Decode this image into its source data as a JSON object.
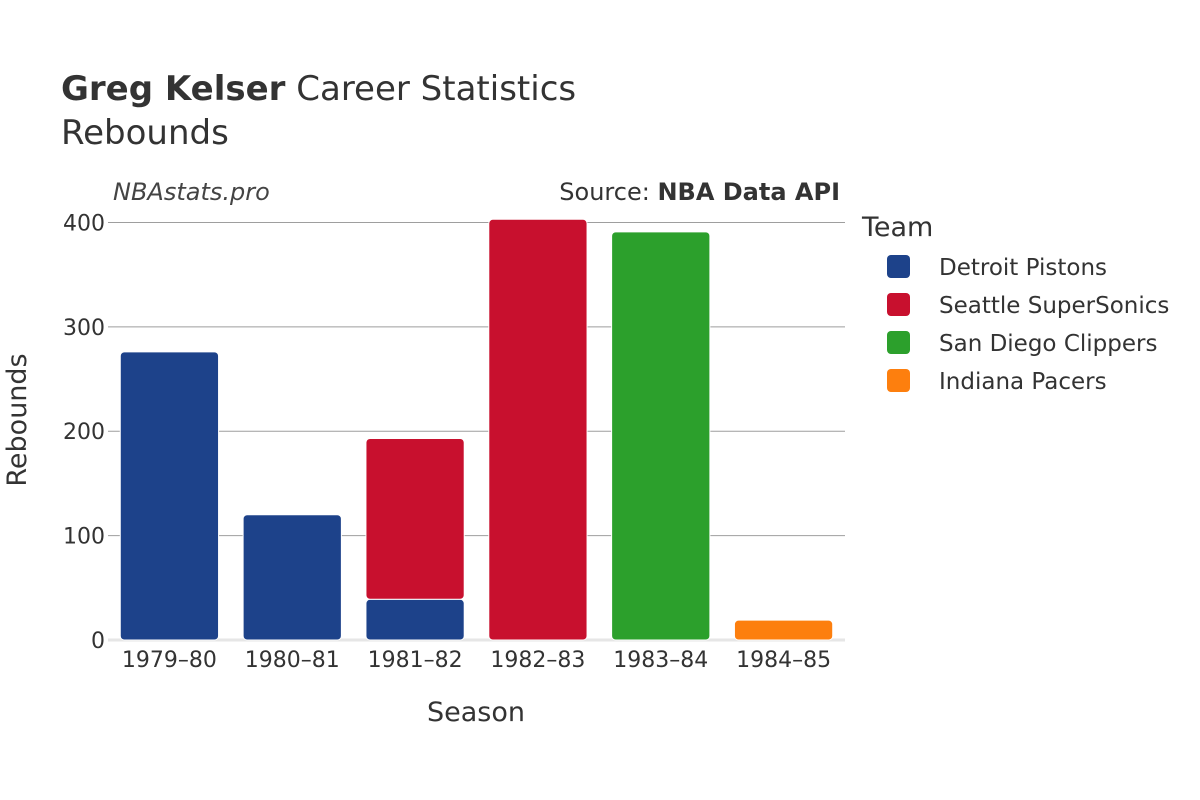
{
  "header": {
    "player_name": "Greg Kelser",
    "title_rest": "Career Statistics",
    "subtitle": "Rebounds"
  },
  "watermark": "NBAstats.pro",
  "source": {
    "prefix": "Source: ",
    "name": "NBA Data API"
  },
  "chart_data": {
    "type": "bar",
    "stacked": true,
    "xlabel": "Season",
    "ylabel": "Rebounds",
    "ylim": [
      0,
      410
    ],
    "yticks": [
      0,
      100,
      200,
      300,
      400
    ],
    "grid": true,
    "legend_title": "Team",
    "legend_position": "right",
    "categories": [
      "1979–80",
      "1980–81",
      "1981–82",
      "1982–83",
      "1983–84",
      "1984–85"
    ],
    "series": [
      {
        "name": "Detroit Pistons",
        "color": "#1d428a",
        "values": [
          276,
          120,
          39,
          0,
          0,
          0
        ]
      },
      {
        "name": "Seattle SuperSonics",
        "color": "#c8102e",
        "values": [
          0,
          0,
          154,
          403,
          0,
          0
        ]
      },
      {
        "name": "San Diego Clippers",
        "color": "#2ca02c",
        "values": [
          0,
          0,
          0,
          0,
          391,
          0
        ]
      },
      {
        "name": "Indiana Pacers",
        "color": "#fd7f0e",
        "values": [
          0,
          0,
          0,
          0,
          0,
          19
        ]
      }
    ]
  }
}
